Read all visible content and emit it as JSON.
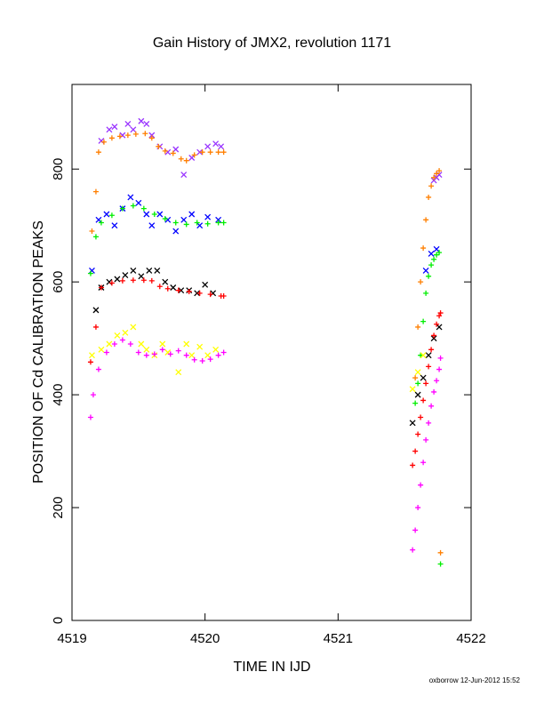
{
  "chart_data": {
    "type": "scatter",
    "title": "Gain History of JMX2, revolution 1171",
    "xlabel": "TIME IN IJD",
    "ylabel": "POSITION OF Cd CALIBRATION PEAKS",
    "xlim": [
      4519,
      4522
    ],
    "ylim": [
      0,
      950
    ],
    "xticks": [
      4519,
      4520,
      4521,
      4522
    ],
    "yticks": [
      0,
      200,
      400,
      600,
      800
    ],
    "footer": "oxborrow 12-Jun-2012 15:52",
    "grid": false,
    "series": [
      {
        "color": "#9933ff",
        "marker": "x",
        "points": [
          [
            4519.22,
            850
          ],
          [
            4519.28,
            870
          ],
          [
            4519.32,
            875
          ],
          [
            4519.38,
            860
          ],
          [
            4519.42,
            880
          ],
          [
            4519.46,
            870
          ],
          [
            4519.52,
            885
          ],
          [
            4519.56,
            880
          ],
          [
            4519.6,
            860
          ],
          [
            4519.66,
            840
          ],
          [
            4519.72,
            830
          ],
          [
            4519.78,
            835
          ],
          [
            4519.84,
            790
          ],
          [
            4519.9,
            820
          ],
          [
            4519.96,
            830
          ],
          [
            4520.02,
            840
          ],
          [
            4520.08,
            845
          ],
          [
            4520.12,
            840
          ],
          [
            4521.72,
            780
          ],
          [
            4521.74,
            785
          ],
          [
            4521.76,
            790
          ]
        ]
      },
      {
        "color": "#ff7f00",
        "marker": "+",
        "points": [
          [
            4519.15,
            690
          ],
          [
            4519.18,
            760
          ],
          [
            4519.2,
            830
          ],
          [
            4519.24,
            848
          ],
          [
            4519.3,
            855
          ],
          [
            4519.36,
            858
          ],
          [
            4519.42,
            860
          ],
          [
            4519.48,
            862
          ],
          [
            4519.55,
            863
          ],
          [
            4519.6,
            855
          ],
          [
            4519.65,
            840
          ],
          [
            4519.7,
            832
          ],
          [
            4519.76,
            828
          ],
          [
            4519.82,
            818
          ],
          [
            4519.86,
            815
          ],
          [
            4519.92,
            825
          ],
          [
            4519.98,
            830
          ],
          [
            4520.04,
            830
          ],
          [
            4520.1,
            830
          ],
          [
            4520.14,
            830
          ],
          [
            4521.58,
            430
          ],
          [
            4521.6,
            520
          ],
          [
            4521.62,
            600
          ],
          [
            4521.64,
            660
          ],
          [
            4521.66,
            710
          ],
          [
            4521.68,
            750
          ],
          [
            4521.7,
            770
          ],
          [
            4521.72,
            785
          ],
          [
            4521.74,
            792
          ],
          [
            4521.76,
            797
          ],
          [
            4521.77,
            120
          ]
        ]
      },
      {
        "color": "#0000ff",
        "marker": "x",
        "points": [
          [
            4519.15,
            620
          ],
          [
            4519.2,
            710
          ],
          [
            4519.26,
            720
          ],
          [
            4519.32,
            700
          ],
          [
            4519.38,
            730
          ],
          [
            4519.44,
            750
          ],
          [
            4519.5,
            740
          ],
          [
            4519.56,
            720
          ],
          [
            4519.6,
            700
          ],
          [
            4519.66,
            720
          ],
          [
            4519.72,
            710
          ],
          [
            4519.78,
            690
          ],
          [
            4519.84,
            710
          ],
          [
            4519.9,
            720
          ],
          [
            4519.96,
            700
          ],
          [
            4520.02,
            715
          ],
          [
            4520.1,
            710
          ],
          [
            4521.66,
            620
          ],
          [
            4521.7,
            650
          ],
          [
            4521.74,
            658
          ]
        ]
      },
      {
        "color": "#00ee00",
        "marker": "+",
        "points": [
          [
            4519.14,
            615
          ],
          [
            4519.18,
            680
          ],
          [
            4519.22,
            705
          ],
          [
            4519.3,
            718
          ],
          [
            4519.38,
            730
          ],
          [
            4519.46,
            735
          ],
          [
            4519.54,
            730
          ],
          [
            4519.62,
            720
          ],
          [
            4519.7,
            712
          ],
          [
            4519.78,
            705
          ],
          [
            4519.86,
            702
          ],
          [
            4519.94,
            705
          ],
          [
            4520.02,
            703
          ],
          [
            4520.1,
            705
          ],
          [
            4520.14,
            705
          ],
          [
            4521.58,
            385
          ],
          [
            4521.6,
            420
          ],
          [
            4521.62,
            470
          ],
          [
            4521.64,
            530
          ],
          [
            4521.66,
            580
          ],
          [
            4521.68,
            610
          ],
          [
            4521.7,
            630
          ],
          [
            4521.72,
            640
          ],
          [
            4521.74,
            648
          ],
          [
            4521.76,
            652
          ],
          [
            4521.77,
            100
          ]
        ]
      },
      {
        "color": "#000000",
        "marker": "x",
        "points": [
          [
            4519.18,
            550
          ],
          [
            4519.22,
            590
          ],
          [
            4519.28,
            600
          ],
          [
            4519.34,
            605
          ],
          [
            4519.4,
            612
          ],
          [
            4519.46,
            620
          ],
          [
            4519.52,
            610
          ],
          [
            4519.58,
            620
          ],
          [
            4519.64,
            620
          ],
          [
            4519.7,
            600
          ],
          [
            4519.76,
            590
          ],
          [
            4519.82,
            585
          ],
          [
            4519.88,
            585
          ],
          [
            4519.94,
            580
          ],
          [
            4520.0,
            595
          ],
          [
            4520.06,
            580
          ],
          [
            4521.56,
            350
          ],
          [
            4521.6,
            400
          ],
          [
            4521.64,
            430
          ],
          [
            4521.68,
            470
          ],
          [
            4521.72,
            500
          ],
          [
            4521.76,
            520
          ]
        ]
      },
      {
        "color": "#ff0000",
        "marker": "+",
        "points": [
          [
            4519.14,
            458
          ],
          [
            4519.18,
            520
          ],
          [
            4519.22,
            590
          ],
          [
            4519.3,
            598
          ],
          [
            4519.38,
            602
          ],
          [
            4519.46,
            603
          ],
          [
            4519.54,
            603
          ],
          [
            4519.6,
            602
          ],
          [
            4519.66,
            592
          ],
          [
            4519.72,
            588
          ],
          [
            4519.8,
            585
          ],
          [
            4519.88,
            583
          ],
          [
            4519.96,
            580
          ],
          [
            4520.04,
            578
          ],
          [
            4520.12,
            575
          ],
          [
            4520.14,
            575
          ],
          [
            4521.56,
            275
          ],
          [
            4521.58,
            300
          ],
          [
            4521.6,
            330
          ],
          [
            4521.62,
            360
          ],
          [
            4521.64,
            390
          ],
          [
            4521.66,
            420
          ],
          [
            4521.68,
            450
          ],
          [
            4521.7,
            480
          ],
          [
            4521.72,
            505
          ],
          [
            4521.74,
            525
          ],
          [
            4521.76,
            540
          ],
          [
            4521.77,
            545
          ]
        ]
      },
      {
        "color": "#ffff00",
        "marker": "x",
        "points": [
          [
            4519.15,
            470
          ],
          [
            4519.22,
            480
          ],
          [
            4519.28,
            490
          ],
          [
            4519.34,
            505
          ],
          [
            4519.4,
            510
          ],
          [
            4519.46,
            520
          ],
          [
            4519.52,
            490
          ],
          [
            4519.56,
            480
          ],
          [
            4519.62,
            470
          ],
          [
            4519.68,
            490
          ],
          [
            4519.72,
            475
          ],
          [
            4519.8,
            440
          ],
          [
            4519.86,
            490
          ],
          [
            4519.9,
            470
          ],
          [
            4519.96,
            485
          ],
          [
            4520.02,
            470
          ],
          [
            4520.08,
            480
          ],
          [
            4521.56,
            410
          ],
          [
            4521.6,
            440
          ],
          [
            4521.64,
            470
          ]
        ]
      },
      {
        "color": "#ff00ff",
        "marker": "+",
        "points": [
          [
            4519.14,
            360
          ],
          [
            4519.16,
            400
          ],
          [
            4519.2,
            445
          ],
          [
            4519.26,
            475
          ],
          [
            4519.32,
            490
          ],
          [
            4519.38,
            497
          ],
          [
            4519.44,
            490
          ],
          [
            4519.5,
            475
          ],
          [
            4519.56,
            470
          ],
          [
            4519.62,
            472
          ],
          [
            4519.68,
            480
          ],
          [
            4519.74,
            472
          ],
          [
            4519.8,
            478
          ],
          [
            4519.86,
            470
          ],
          [
            4519.92,
            462
          ],
          [
            4519.98,
            460
          ],
          [
            4520.04,
            463
          ],
          [
            4520.1,
            470
          ],
          [
            4520.14,
            475
          ],
          [
            4521.56,
            125
          ],
          [
            4521.58,
            160
          ],
          [
            4521.6,
            200
          ],
          [
            4521.62,
            240
          ],
          [
            4521.64,
            280
          ],
          [
            4521.66,
            320
          ],
          [
            4521.68,
            350
          ],
          [
            4521.7,
            380
          ],
          [
            4521.72,
            405
          ],
          [
            4521.74,
            425
          ],
          [
            4521.76,
            445
          ],
          [
            4521.77,
            465
          ]
        ]
      }
    ]
  }
}
